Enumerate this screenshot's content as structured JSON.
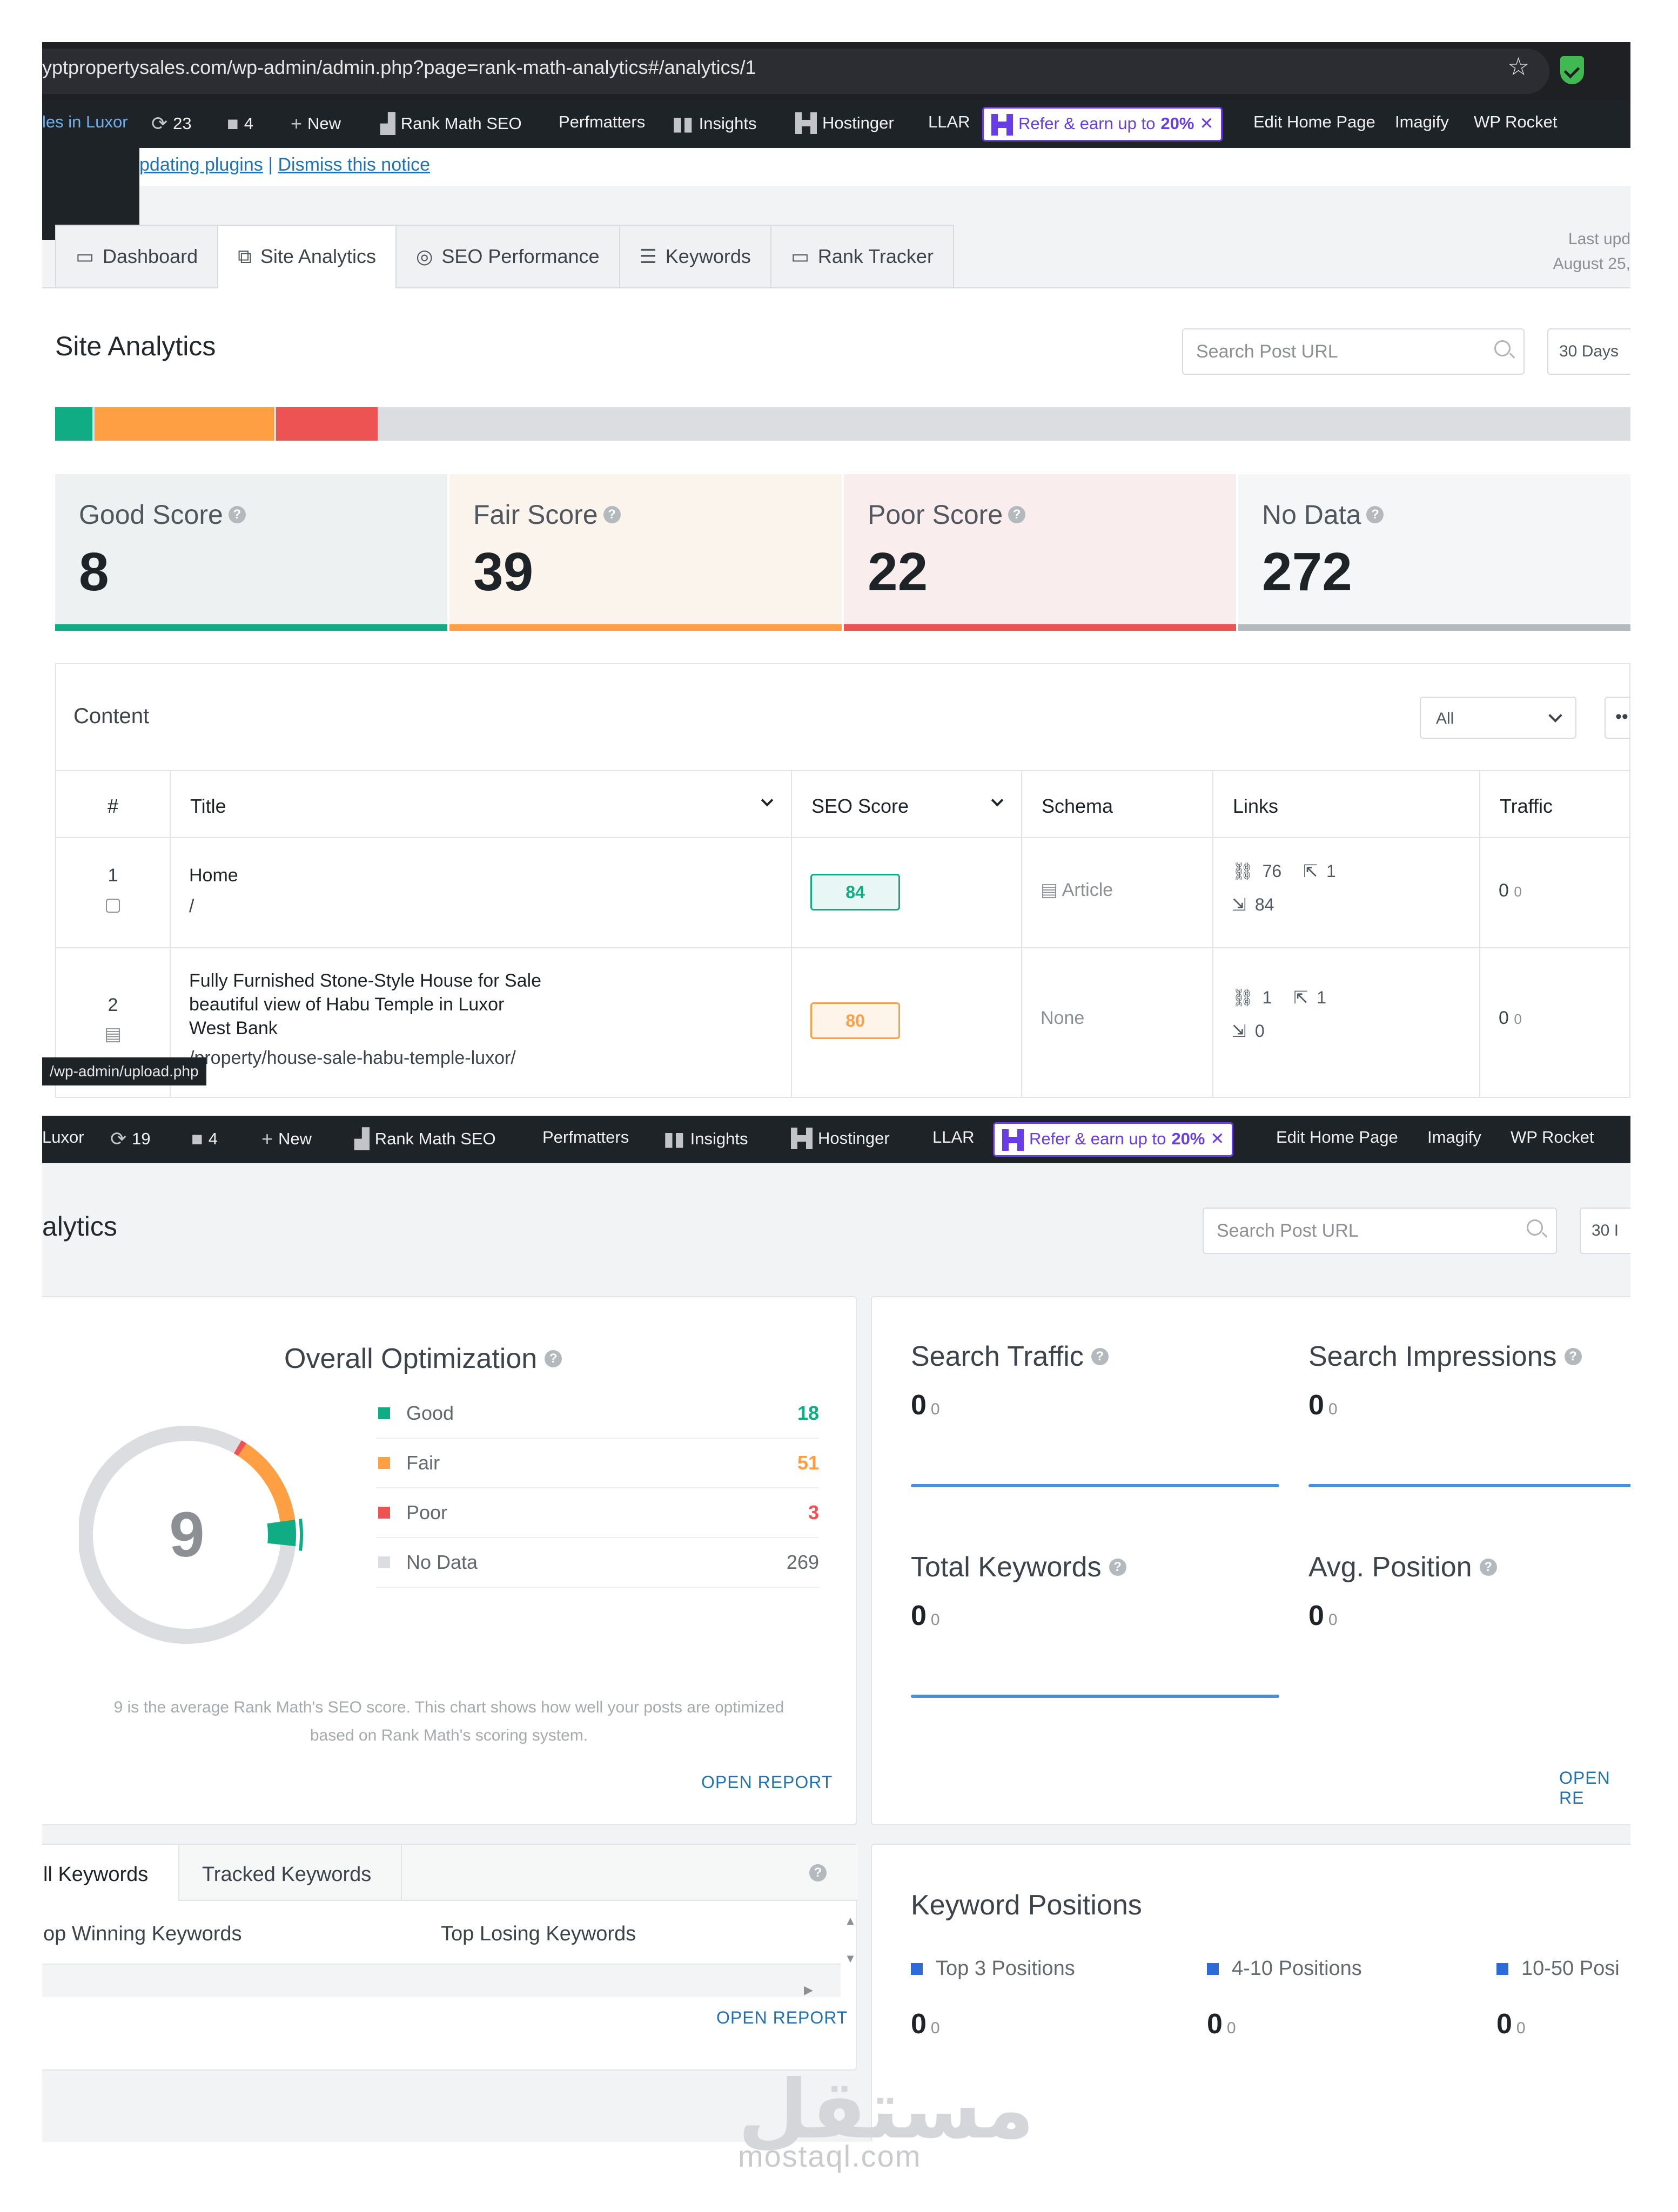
{
  "browser": {
    "url": "yptpropertysales.com/wp-admin/admin.php?page=rank-math-analytics#/analytics/1"
  },
  "adminbar1": {
    "site": "les in Luxor",
    "updates": "23",
    "comments": "4",
    "new": "New",
    "items": [
      "Rank Math SEO",
      "Perfmatters",
      "Insights",
      "Hostinger",
      "LLAR"
    ],
    "refer_prefix": "Refer & earn up to",
    "refer_pct": "20%",
    "tail": [
      "Edit Home Page",
      "Imagify",
      "WP Rocket"
    ]
  },
  "notice": {
    "link1": "pdating plugins",
    "sep": "|",
    "link2": "Dismiss this notice"
  },
  "tabs": [
    "Dashboard",
    "Site Analytics",
    "SEO Performance",
    "Keywords",
    "Rank Tracker"
  ],
  "last_updated": {
    "line1": "Last upd",
    "line2": "August 25,"
  },
  "site_analytics": {
    "title": "Site Analytics",
    "search_placeholder": "Search Post URL",
    "days": "30 Days"
  },
  "score_cards": [
    {
      "label": "Good Score",
      "value": "8",
      "color": "#10ac84"
    },
    {
      "label": "Fair Score",
      "value": "39",
      "color": "#ff9f43"
    },
    {
      "label": "Poor Score",
      "value": "22",
      "color": "#ee5353"
    },
    {
      "label": "No Data",
      "value": "272",
      "color": "#b4b9be"
    }
  ],
  "score_bar": [
    {
      "name": "good",
      "fraction": 0.0235,
      "color": "#10ac84"
    },
    {
      "name": "fair",
      "fraction": 0.1147,
      "color": "#ff9f43"
    },
    {
      "name": "poor",
      "fraction": 0.0647,
      "color": "#ee5353"
    },
    {
      "name": "nodata",
      "fraction": 0.7971,
      "color": "#dcdde1"
    }
  ],
  "content_table": {
    "title": "Content",
    "filter": "All",
    "more": "••",
    "headers": [
      "#",
      "Title",
      "SEO Score",
      "Schema",
      "Links",
      "Traffic"
    ],
    "rows": [
      {
        "num": "1",
        "title": "Home",
        "url": "/",
        "score": "84",
        "schema": "Article",
        "internal": "76",
        "external": "1",
        "incoming": "84",
        "traffic": "0",
        "traffic_diff": "0"
      },
      {
        "num": "2",
        "title_lines": [
          "Fully Furnished Stone-Style House for Sale",
          "beautiful view of Habu Temple in Luxor",
          "West Bank"
        ],
        "url": "/property/house-sale-habu-temple-luxor/",
        "score": "80",
        "schema": "None",
        "internal": "1",
        "external": "1",
        "incoming": "0",
        "traffic": "0",
        "traffic_diff": "0"
      }
    ]
  },
  "status_url": "/wp-admin/upload.php",
  "adminbar2": {
    "site": "Luxor",
    "updates": "19",
    "comments": "4",
    "new": "New",
    "items": [
      "Rank Math SEO",
      "Perfmatters",
      "Insights",
      "Hostinger",
      "LLAR"
    ],
    "refer_prefix": "Refer & earn up to",
    "refer_pct": "20%",
    "tail": [
      "Edit Home Page",
      "Imagify",
      "WP Rocket"
    ]
  },
  "analytics2": {
    "title": "alytics",
    "search_placeholder": "Search Post URL",
    "days": "30 I"
  },
  "overall": {
    "title": "Overall Optimization",
    "score": "9",
    "legend": [
      {
        "label": "Good",
        "value": "18",
        "color": "#10ac84"
      },
      {
        "label": "Fair",
        "value": "51",
        "color": "#ff9f43"
      },
      {
        "label": "Poor",
        "value": "3",
        "color": "#ee5353"
      },
      {
        "label": "No Data",
        "value": "269",
        "color": "#dcdde1"
      }
    ],
    "desc_line1": "9 is the average Rank Math's SEO score. This chart shows how well your posts are optimized",
    "desc_line2": "based on Rank Math's scoring system.",
    "open_report": "OPEN REPORT"
  },
  "metrics": [
    {
      "label": "Search Traffic",
      "value": "0",
      "diff": "0"
    },
    {
      "label": "Search Impressions",
      "value": "0",
      "diff": "0"
    },
    {
      "label": "Total Keywords",
      "value": "0",
      "diff": "0"
    },
    {
      "label": "Avg. Position",
      "value": "0",
      "diff": "0"
    }
  ],
  "metrics_open": "OPEN RE",
  "keywords_panel": {
    "tabs": [
      "ll Keywords",
      "Tracked Keywords"
    ],
    "winning": "op Winning Keywords",
    "losing": "Top Losing Keywords",
    "open_report": "OPEN REPORT"
  },
  "keyword_positions": {
    "title": "Keyword Positions",
    "items": [
      {
        "label": "Top 3 Positions",
        "value": "0",
        "diff": "0"
      },
      {
        "label": "4-10 Positions",
        "value": "0",
        "diff": "0"
      },
      {
        "label": "10-50 Posi",
        "value": "0",
        "diff": "0"
      }
    ]
  },
  "watermark": {
    "arabic": "مستقل",
    "latin": "mostaql.com"
  }
}
